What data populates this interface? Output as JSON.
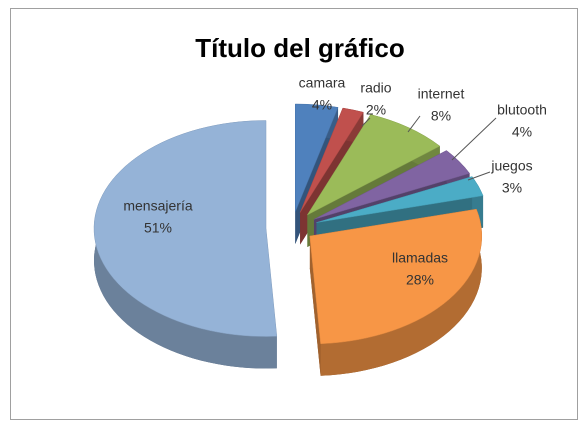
{
  "chart_data": {
    "type": "pie3d",
    "title": "Título del gráfico",
    "categories": [
      "camara",
      "radio",
      "internet",
      "blutooth",
      "juegos",
      "llamadas",
      "mensajería"
    ],
    "values": [
      4,
      2,
      8,
      4,
      3,
      28,
      51
    ],
    "value_labels": [
      "4%",
      "2%",
      "8%",
      "4%",
      "3%",
      "28%",
      "51%"
    ],
    "colors": [
      "#4f81bd",
      "#c0504d",
      "#9bbb59",
      "#8064a2",
      "#4bacc6",
      "#f79646",
      "#95b3d7"
    ]
  }
}
